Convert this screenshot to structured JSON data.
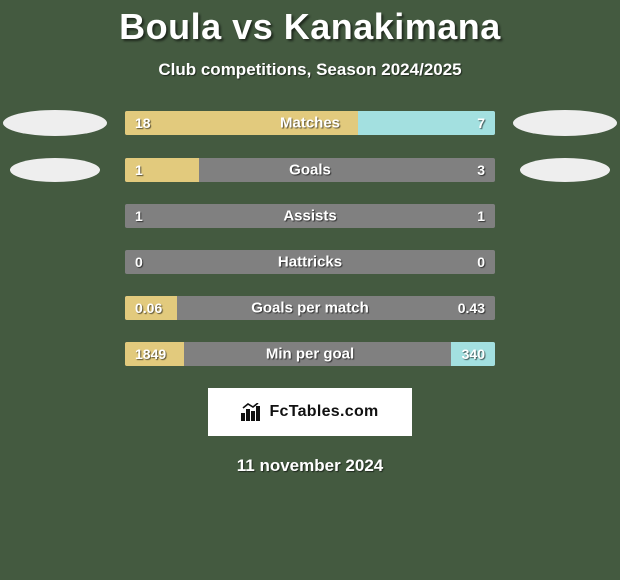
{
  "title": "Boula vs Kanakimana",
  "subtitle": "Club competitions, Season 2024/2025",
  "date": "11 november 2024",
  "brand": "FcTables.com",
  "colors": {
    "page_bg": "#445a40",
    "track_bg": "#808080",
    "left_bar": "#e2ca7d",
    "right_bar": "#a3e0e0",
    "oval_left": "#eeeeee",
    "oval_right": "#eeeeee",
    "title_text": "#ffffff"
  },
  "layout": {
    "track_width": 370,
    "oval_w": 104,
    "oval_h": 26,
    "oval_small_w": 90,
    "oval_small_h": 24
  },
  "rows": [
    {
      "label": "Matches",
      "left_val": "18",
      "right_val": "7",
      "left_pct": 63,
      "right_pct": 37,
      "show_ovals": true,
      "big_ovals": true
    },
    {
      "label": "Goals",
      "left_val": "1",
      "right_val": "3",
      "left_pct": 20,
      "right_pct": 0,
      "show_ovals": true,
      "big_ovals": false
    },
    {
      "label": "Assists",
      "left_val": "1",
      "right_val": "1",
      "left_pct": 0,
      "right_pct": 0,
      "show_ovals": false
    },
    {
      "label": "Hattricks",
      "left_val": "0",
      "right_val": "0",
      "left_pct": 0,
      "right_pct": 0,
      "show_ovals": false
    },
    {
      "label": "Goals per match",
      "left_val": "0.06",
      "right_val": "0.43",
      "left_pct": 14,
      "right_pct": 0,
      "show_ovals": false
    },
    {
      "label": "Min per goal",
      "left_val": "1849",
      "right_val": "340",
      "left_pct": 16,
      "right_pct": 12,
      "show_ovals": false
    }
  ]
}
